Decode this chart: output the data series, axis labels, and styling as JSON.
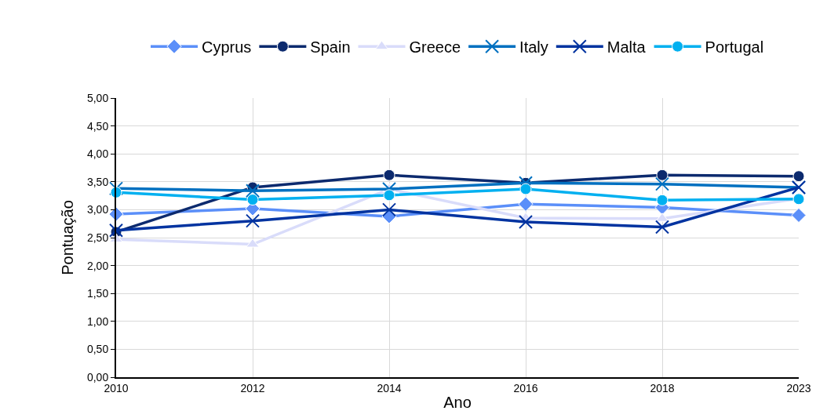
{
  "chart_data": {
    "type": "line",
    "xlabel": "Ano",
    "ylabel": "Pontuação",
    "categories": [
      "2010",
      "2012",
      "2014",
      "2016",
      "2018",
      "2023"
    ],
    "series": [
      {
        "name": "Cyprus",
        "color": "#5b8ff9",
        "marker": "diamond",
        "values": [
          2.92,
          3.02,
          2.88,
          3.1,
          3.04,
          2.9
        ]
      },
      {
        "name": "Spain",
        "color": "#0c2a6e",
        "marker": "circle",
        "values": [
          2.6,
          3.4,
          3.62,
          3.48,
          3.62,
          3.6
        ]
      },
      {
        "name": "Greece",
        "color": "#d9dcfa",
        "marker": "triangle",
        "values": [
          2.47,
          2.38,
          3.37,
          2.85,
          2.84,
          3.2
        ]
      },
      {
        "name": "Italy",
        "color": "#0070c0",
        "marker": "cross",
        "values": [
          3.38,
          3.34,
          3.37,
          3.48,
          3.46,
          3.4
        ]
      },
      {
        "name": "Malta",
        "color": "#0033a0",
        "marker": "cross",
        "values": [
          2.63,
          2.8,
          3.0,
          2.78,
          2.69,
          3.4
        ]
      },
      {
        "name": "Portugal",
        "color": "#00b0f0",
        "marker": "circle",
        "values": [
          3.31,
          3.18,
          3.26,
          3.37,
          3.17,
          3.19
        ]
      }
    ],
    "ylim": [
      0,
      5
    ],
    "yticks": [
      {
        "value": 0,
        "label": "0,00"
      },
      {
        "value": 0.5,
        "label": "0,50"
      },
      {
        "value": 1,
        "label": "1,00"
      },
      {
        "value": 1.5,
        "label": "1,50"
      },
      {
        "value": 2,
        "label": "2,00"
      },
      {
        "value": 2.5,
        "label": "2,50"
      },
      {
        "value": 3,
        "label": "3,00"
      },
      {
        "value": 3.5,
        "label": "3,50"
      },
      {
        "value": 4,
        "label": "4,00"
      },
      {
        "value": 4.5,
        "label": "4,50"
      },
      {
        "value": 5,
        "label": "5,00"
      }
    ],
    "grid": true,
    "legend": "top",
    "line_style": "solid"
  }
}
